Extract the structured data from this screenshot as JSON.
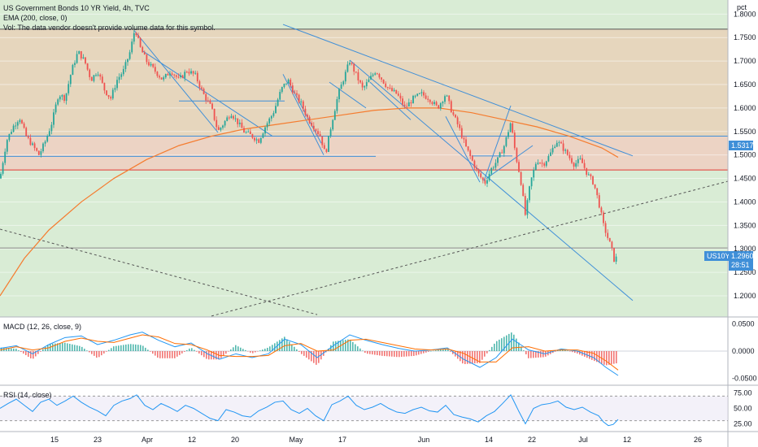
{
  "header": {
    "title": "US Government Bonds 10 YR Yield, 4h, TVC",
    "ema_label": "EMA (200, close, 0)",
    "vol_label": "Vol: The data vendor doesn't provide volume data for this symbol.",
    "unit": "pct"
  },
  "price_tag": {
    "symbol": "US10Y",
    "price": "1.2960",
    "countdown": "28:51"
  },
  "level_tag": "1.5317",
  "macd_label": "MACD (12, 26, close, 9)",
  "rsi_label": "RSI (14, close)",
  "colors": {
    "up": "#26a69a",
    "down": "#ef5350",
    "ema": "#f57c2f",
    "macd": "#2196f3",
    "signal": "#ff6d00",
    "trendline": "#3f8fd8",
    "zone_green": "#d9ecd5",
    "zone_tan": "#e6d6bd",
    "zone_pink": "#ecd3c4",
    "red_line": "#e53935"
  },
  "chart_data": {
    "type": "candlestick",
    "y_range": [
      1.155,
      1.83
    ],
    "y_ticks": [
      "1.8000",
      "1.7500",
      "1.7000",
      "1.6500",
      "1.6000",
      "1.5500",
      "1.5000",
      "1.4500",
      "1.4000",
      "1.3500",
      "1.3000",
      "1.2500",
      "1.2000"
    ],
    "x_ticks": [
      "15",
      "23",
      "Apr",
      "12",
      "20",
      "May",
      "17",
      "Jun",
      "14",
      "22",
      "Jul",
      "12",
      "26"
    ],
    "horizontal_levels": [
      1.768,
      1.54,
      1.497,
      1.468,
      1.302
    ],
    "close_path": [
      [
        0,
        1.45
      ],
      [
        8,
        1.53
      ],
      [
        16,
        1.56
      ],
      [
        24,
        1.58
      ],
      [
        32,
        1.54
      ],
      [
        40,
        1.52
      ],
      [
        48,
        1.5
      ],
      [
        56,
        1.53
      ],
      [
        64,
        1.57
      ],
      [
        72,
        1.63
      ],
      [
        80,
        1.62
      ],
      [
        88,
        1.68
      ],
      [
        96,
        1.72
      ],
      [
        104,
        1.7
      ],
      [
        112,
        1.66
      ],
      [
        120,
        1.68
      ],
      [
        128,
        1.64
      ],
      [
        136,
        1.62
      ],
      [
        144,
        1.66
      ],
      [
        152,
        1.68
      ],
      [
        160,
        1.72
      ],
      [
        166,
        1.77
      ],
      [
        172,
        1.73
      ],
      [
        180,
        1.7
      ],
      [
        190,
        1.68
      ],
      [
        200,
        1.66
      ],
      [
        210,
        1.68
      ],
      [
        220,
        1.66
      ],
      [
        230,
        1.68
      ],
      [
        240,
        1.67
      ],
      [
        250,
        1.63
      ],
      [
        260,
        1.6
      ],
      [
        268,
        1.55
      ],
      [
        276,
        1.57
      ],
      [
        284,
        1.59
      ],
      [
        292,
        1.57
      ],
      [
        300,
        1.55
      ],
      [
        310,
        1.54
      ],
      [
        318,
        1.53
      ],
      [
        326,
        1.56
      ],
      [
        336,
        1.59
      ],
      [
        346,
        1.64
      ],
      [
        354,
        1.66
      ],
      [
        362,
        1.63
      ],
      [
        370,
        1.61
      ],
      [
        378,
        1.58
      ],
      [
        386,
        1.56
      ],
      [
        394,
        1.54
      ],
      [
        400,
        1.5
      ],
      [
        408,
        1.57
      ],
      [
        416,
        1.63
      ],
      [
        424,
        1.67
      ],
      [
        430,
        1.7
      ],
      [
        438,
        1.67
      ],
      [
        446,
        1.64
      ],
      [
        454,
        1.66
      ],
      [
        462,
        1.68
      ],
      [
        470,
        1.66
      ],
      [
        478,
        1.64
      ],
      [
        488,
        1.63
      ],
      [
        498,
        1.6
      ],
      [
        508,
        1.62
      ],
      [
        518,
        1.63
      ],
      [
        528,
        1.62
      ],
      [
        538,
        1.6
      ],
      [
        548,
        1.63
      ],
      [
        556,
        1.59
      ],
      [
        564,
        1.56
      ],
      [
        572,
        1.52
      ],
      [
        580,
        1.49
      ],
      [
        588,
        1.46
      ],
      [
        596,
        1.44
      ],
      [
        604,
        1.47
      ],
      [
        612,
        1.49
      ],
      [
        620,
        1.52
      ],
      [
        628,
        1.57
      ],
      [
        634,
        1.5
      ],
      [
        640,
        1.45
      ],
      [
        646,
        1.37
      ],
      [
        652,
        1.44
      ],
      [
        660,
        1.49
      ],
      [
        668,
        1.48
      ],
      [
        676,
        1.5
      ],
      [
        684,
        1.53
      ],
      [
        690,
        1.52
      ],
      [
        698,
        1.5
      ],
      [
        706,
        1.48
      ],
      [
        714,
        1.49
      ],
      [
        722,
        1.46
      ],
      [
        730,
        1.44
      ],
      [
        736,
        1.4
      ],
      [
        742,
        1.35
      ],
      [
        748,
        1.32
      ],
      [
        752,
        1.3
      ],
      [
        756,
        1.27
      ],
      [
        760,
        1.296
      ]
    ],
    "ema_path": [
      [
        0,
        1.2
      ],
      [
        30,
        1.28
      ],
      [
        60,
        1.34
      ],
      [
        100,
        1.4
      ],
      [
        140,
        1.45
      ],
      [
        180,
        1.49
      ],
      [
        220,
        1.52
      ],
      [
        260,
        1.54
      ],
      [
        300,
        1.555
      ],
      [
        340,
        1.565
      ],
      [
        380,
        1.575
      ],
      [
        420,
        1.585
      ],
      [
        460,
        1.595
      ],
      [
        500,
        1.6
      ],
      [
        540,
        1.6
      ],
      [
        580,
        1.59
      ],
      [
        620,
        1.575
      ],
      [
        660,
        1.56
      ],
      [
        700,
        1.54
      ],
      [
        740,
        1.515
      ],
      [
        760,
        1.495
      ]
    ],
    "trendlines": [
      [
        [
          348,
          1.778
        ],
        [
          778,
          1.498
        ]
      ],
      [
        [
          430,
          1.702
        ],
        [
          778,
          1.19
        ]
      ],
      [
        [
          0,
          1.342
        ],
        [
          390,
          1.16
        ]
      ],
      [
        [
          260,
          1.157
        ],
        [
          895,
          1.444
        ]
      ],
      [
        [
          165,
          1.765
        ],
        [
          268,
          1.548
        ]
      ],
      [
        [
          175,
          1.722
        ],
        [
          335,
          1.54
        ]
      ],
      [
        [
          220,
          1.615
        ],
        [
          350,
          1.615
        ]
      ],
      [
        [
          348,
          1.672
        ],
        [
          398,
          1.5
        ]
      ],
      [
        [
          355,
          1.655
        ],
        [
          395,
          1.525
        ]
      ],
      [
        [
          405,
          1.655
        ],
        [
          450,
          1.6
        ]
      ],
      [
        [
          455,
          1.655
        ],
        [
          505,
          1.575
        ]
      ],
      [
        [
          548,
          1.582
        ],
        [
          590,
          1.442
        ]
      ],
      [
        [
          595,
          1.445
        ],
        [
          628,
          1.605
        ]
      ],
      [
        [
          598,
          1.45
        ],
        [
          655,
          1.52
        ]
      ],
      [
        [
          580,
          1.498
        ],
        [
          630,
          1.498
        ]
      ],
      [
        [
          0,
          1.497
        ],
        [
          462,
          1.497
        ]
      ]
    ],
    "macd": {
      "y_range": [
        -0.06,
        0.06
      ],
      "y_ticks": [
        "0.0500",
        "0.0000",
        "-0.0500"
      ],
      "macd_path": [
        [
          0,
          0.005
        ],
        [
          20,
          0.01
        ],
        [
          40,
          -0.005
        ],
        [
          60,
          0.012
        ],
        [
          80,
          0.025
        ],
        [
          100,
          0.028
        ],
        [
          120,
          0.012
        ],
        [
          140,
          0.02
        ],
        [
          160,
          0.03
        ],
        [
          175,
          0.035
        ],
        [
          195,
          0.02
        ],
        [
          215,
          0.008
        ],
        [
          235,
          0.015
        ],
        [
          255,
          -0.005
        ],
        [
          270,
          -0.015
        ],
        [
          290,
          -0.005
        ],
        [
          310,
          -0.012
        ],
        [
          330,
          -0.005
        ],
        [
          350,
          0.022
        ],
        [
          370,
          0.012
        ],
        [
          390,
          -0.012
        ],
        [
          410,
          0.01
        ],
        [
          430,
          0.03
        ],
        [
          450,
          0.02
        ],
        [
          470,
          0.012
        ],
        [
          490,
          0.005
        ],
        [
          510,
          0.0
        ],
        [
          530,
          0.002
        ],
        [
          550,
          0.006
        ],
        [
          570,
          -0.015
        ],
        [
          590,
          -0.03
        ],
        [
          610,
          -0.012
        ],
        [
          630,
          0.022
        ],
        [
          650,
          0.002
        ],
        [
          670,
          -0.005
        ],
        [
          690,
          0.004
        ],
        [
          710,
          0.0
        ],
        [
          730,
          -0.012
        ],
        [
          745,
          -0.03
        ],
        [
          760,
          -0.045
        ]
      ],
      "signal_path": [
        [
          0,
          0.002
        ],
        [
          20,
          0.008
        ],
        [
          40,
          0.002
        ],
        [
          60,
          0.006
        ],
        [
          80,
          0.018
        ],
        [
          100,
          0.024
        ],
        [
          120,
          0.018
        ],
        [
          140,
          0.016
        ],
        [
          160,
          0.024
        ],
        [
          175,
          0.03
        ],
        [
          195,
          0.026
        ],
        [
          215,
          0.014
        ],
        [
          235,
          0.012
        ],
        [
          255,
          0.002
        ],
        [
          270,
          -0.008
        ],
        [
          290,
          -0.01
        ],
        [
          310,
          -0.01
        ],
        [
          330,
          -0.008
        ],
        [
          350,
          0.01
        ],
        [
          370,
          0.014
        ],
        [
          390,
          0.0
        ],
        [
          410,
          0.002
        ],
        [
          430,
          0.02
        ],
        [
          450,
          0.022
        ],
        [
          470,
          0.016
        ],
        [
          490,
          0.01
        ],
        [
          510,
          0.004
        ],
        [
          530,
          0.002
        ],
        [
          550,
          0.004
        ],
        [
          570,
          -0.004
        ],
        [
          590,
          -0.02
        ],
        [
          610,
          -0.02
        ],
        [
          630,
          0.006
        ],
        [
          650,
          0.008
        ],
        [
          670,
          0.0
        ],
        [
          690,
          0.002
        ],
        [
          710,
          0.002
        ],
        [
          730,
          -0.004
        ],
        [
          745,
          -0.018
        ],
        [
          760,
          -0.035
        ]
      ]
    },
    "rsi": {
      "y_range": [
        15,
        85
      ],
      "y_ticks": [
        "75.00",
        "50.00",
        "25.00"
      ],
      "band": [
        30,
        70
      ],
      "path": [
        [
          0,
          50
        ],
        [
          10,
          58
        ],
        [
          20,
          65
        ],
        [
          30,
          55
        ],
        [
          40,
          45
        ],
        [
          50,
          60
        ],
        [
          60,
          65
        ],
        [
          70,
          55
        ],
        [
          80,
          62
        ],
        [
          90,
          70
        ],
        [
          100,
          60
        ],
        [
          110,
          52
        ],
        [
          120,
          46
        ],
        [
          130,
          38
        ],
        [
          140,
          55
        ],
        [
          150,
          62
        ],
        [
          160,
          66
        ],
        [
          168,
          72
        ],
        [
          178,
          55
        ],
        [
          188,
          48
        ],
        [
          198,
          58
        ],
        [
          208,
          52
        ],
        [
          218,
          45
        ],
        [
          228,
          55
        ],
        [
          238,
          50
        ],
        [
          248,
          42
        ],
        [
          258,
          34
        ],
        [
          268,
          30
        ],
        [
          278,
          48
        ],
        [
          288,
          44
        ],
        [
          298,
          38
        ],
        [
          308,
          36
        ],
        [
          318,
          46
        ],
        [
          328,
          52
        ],
        [
          338,
          60
        ],
        [
          348,
          62
        ],
        [
          358,
          48
        ],
        [
          368,
          42
        ],
        [
          378,
          50
        ],
        [
          388,
          38
        ],
        [
          398,
          30
        ],
        [
          408,
          56
        ],
        [
          418,
          62
        ],
        [
          428,
          70
        ],
        [
          438,
          55
        ],
        [
          448,
          48
        ],
        [
          458,
          52
        ],
        [
          468,
          58
        ],
        [
          478,
          50
        ],
        [
          488,
          44
        ],
        [
          498,
          42
        ],
        [
          508,
          48
        ],
        [
          518,
          52
        ],
        [
          528,
          46
        ],
        [
          538,
          44
        ],
        [
          548,
          55
        ],
        [
          558,
          40
        ],
        [
          568,
          36
        ],
        [
          578,
          33
        ],
        [
          588,
          28
        ],
        [
          598,
          38
        ],
        [
          608,
          45
        ],
        [
          618,
          58
        ],
        [
          628,
          72
        ],
        [
          638,
          45
        ],
        [
          646,
          25
        ],
        [
          656,
          50
        ],
        [
          666,
          56
        ],
        [
          676,
          58
        ],
        [
          686,
          62
        ],
        [
          696,
          52
        ],
        [
          706,
          48
        ],
        [
          716,
          52
        ],
        [
          726,
          44
        ],
        [
          736,
          38
        ],
        [
          742,
          28
        ],
        [
          748,
          22
        ],
        [
          754,
          24
        ],
        [
          760,
          32
        ]
      ]
    }
  }
}
